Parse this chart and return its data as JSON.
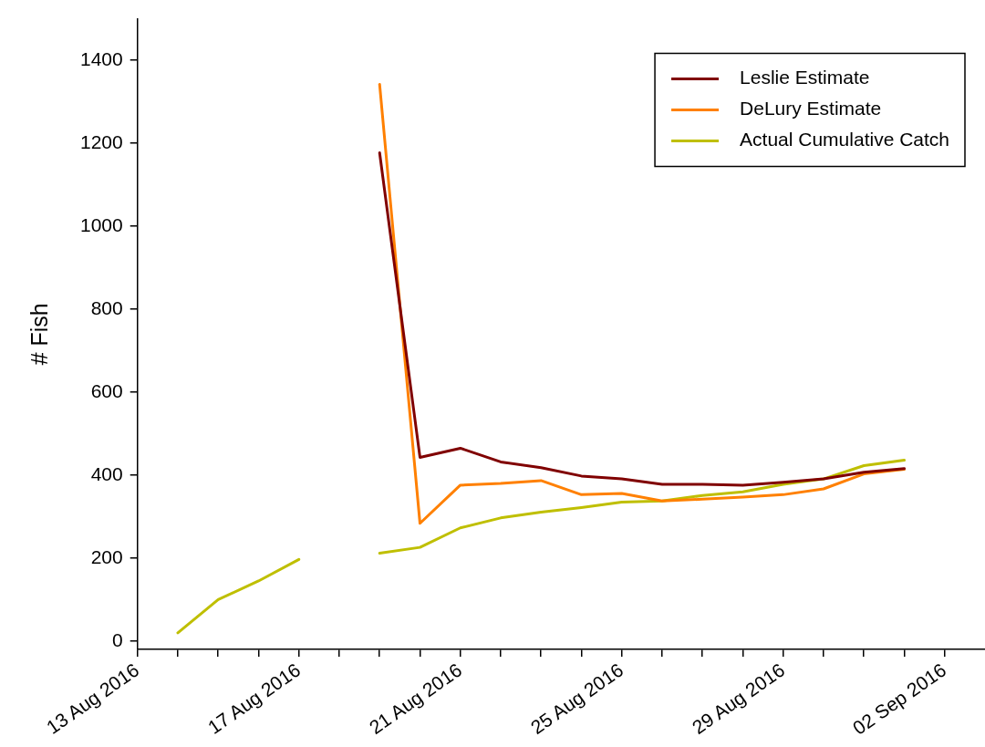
{
  "chart_data": {
    "type": "line",
    "ylabel": "# Fish",
    "x": [
      "2016-08-14",
      "2016-08-15",
      "2016-08-16",
      "2016-08-17",
      "2016-08-18",
      "2016-08-19",
      "2016-08-20",
      "2016-08-21",
      "2016-08-22",
      "2016-08-23",
      "2016-08-24",
      "2016-08-25",
      "2016-08-26",
      "2016-08-27",
      "2016-08-28",
      "2016-08-29",
      "2016-08-30",
      "2016-08-31",
      "2016-09-01"
    ],
    "series": [
      {
        "name": "Leslie Estimate",
        "color": "#800000",
        "values": [
          null,
          null,
          null,
          null,
          null,
          1177,
          443,
          465,
          432,
          418,
          398,
          391,
          378,
          378,
          376,
          383,
          391,
          407,
          416
        ]
      },
      {
        "name": "DeLury Estimate",
        "color": "#ff8000",
        "values": [
          null,
          null,
          null,
          null,
          null,
          1342,
          284,
          376,
          380,
          387,
          353,
          356,
          338,
          342,
          347,
          353,
          367,
          403,
          414
        ]
      },
      {
        "name": "Actual Cumulative Catch",
        "color": "#bfbf00",
        "values": [
          20,
          100,
          145,
          197,
          null,
          212,
          226,
          273,
          297,
          311,
          322,
          335,
          338,
          351,
          360,
          378,
          391,
          423,
          436
        ]
      }
    ],
    "xlim": [
      "2016-08-13",
      "2016-09-03"
    ],
    "xticks": [
      {
        "value": "2016-08-13",
        "label": "13 Aug 2016"
      },
      {
        "value": "2016-08-14",
        "label": null
      },
      {
        "value": "2016-08-15",
        "label": null
      },
      {
        "value": "2016-08-16",
        "label": null
      },
      {
        "value": "2016-08-17",
        "label": "17 Aug 2016"
      },
      {
        "value": "2016-08-18",
        "label": null
      },
      {
        "value": "2016-08-19",
        "label": null
      },
      {
        "value": "2016-08-20",
        "label": null
      },
      {
        "value": "2016-08-21",
        "label": "21 Aug 2016"
      },
      {
        "value": "2016-08-22",
        "label": null
      },
      {
        "value": "2016-08-23",
        "label": null
      },
      {
        "value": "2016-08-24",
        "label": null
      },
      {
        "value": "2016-08-25",
        "label": "25 Aug 2016"
      },
      {
        "value": "2016-08-26",
        "label": null
      },
      {
        "value": "2016-08-27",
        "label": null
      },
      {
        "value": "2016-08-28",
        "label": null
      },
      {
        "value": "2016-08-29",
        "label": "29 Aug 2016"
      },
      {
        "value": "2016-08-30",
        "label": null
      },
      {
        "value": "2016-08-31",
        "label": null
      },
      {
        "value": "2016-09-01",
        "label": null
      },
      {
        "value": "2016-09-02",
        "label": "02 Sep 2016"
      }
    ],
    "ylim": [
      -20,
      1500
    ],
    "yticks": [
      0,
      200,
      400,
      600,
      800,
      1000,
      1200,
      1400
    ],
    "grid": false,
    "legend": "top right",
    "marker": "none",
    "line_style": "solid"
  }
}
